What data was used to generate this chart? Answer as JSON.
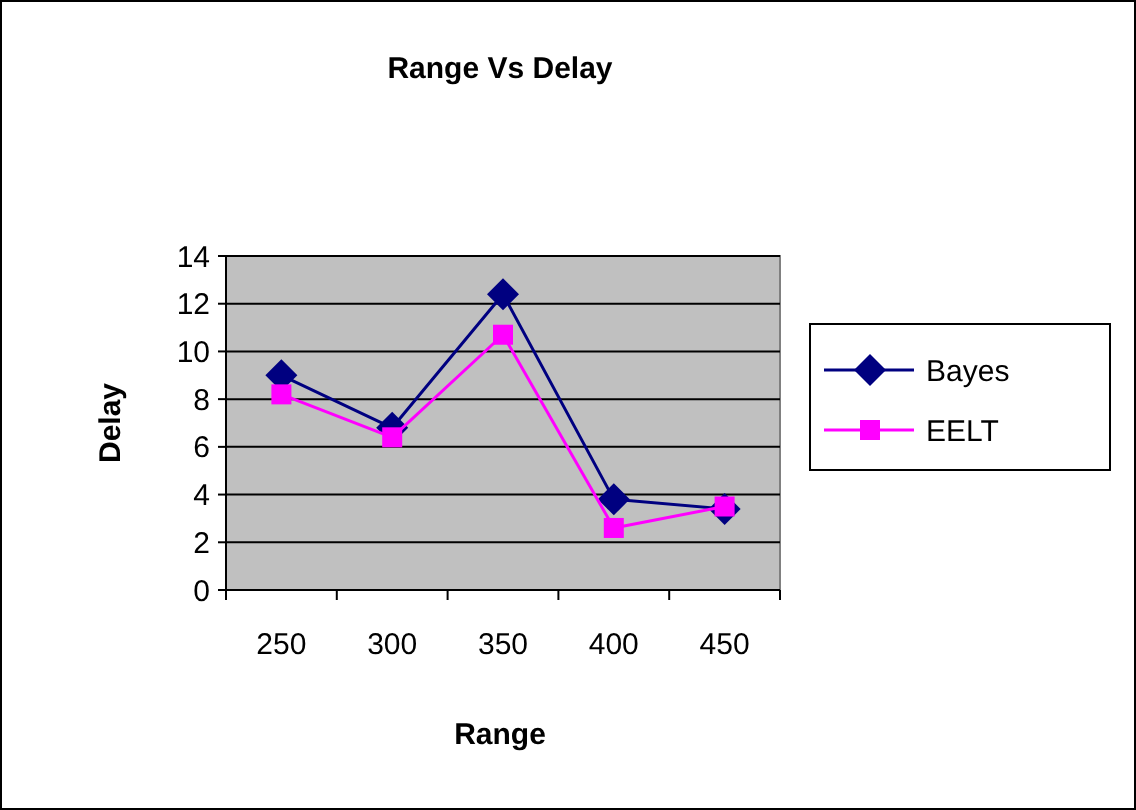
{
  "chart_data": {
    "type": "line",
    "title": "Range Vs Delay",
    "xlabel": "Range",
    "ylabel": "Delay",
    "categories": [
      "250",
      "300",
      "350",
      "400",
      "450"
    ],
    "series": [
      {
        "name": "Bayes",
        "color": "#000080",
        "values": [
          9.0,
          6.8,
          12.4,
          3.8,
          3.4
        ],
        "marker": "diamond"
      },
      {
        "name": "EELT",
        "color": "#ff00ff",
        "values": [
          8.2,
          6.4,
          10.7,
          2.6,
          3.5
        ],
        "marker": "square"
      }
    ],
    "ylim": [
      0,
      14
    ],
    "yticks": [
      0,
      2,
      4,
      6,
      8,
      10,
      12,
      14
    ],
    "grid": "y",
    "legend": "right"
  }
}
